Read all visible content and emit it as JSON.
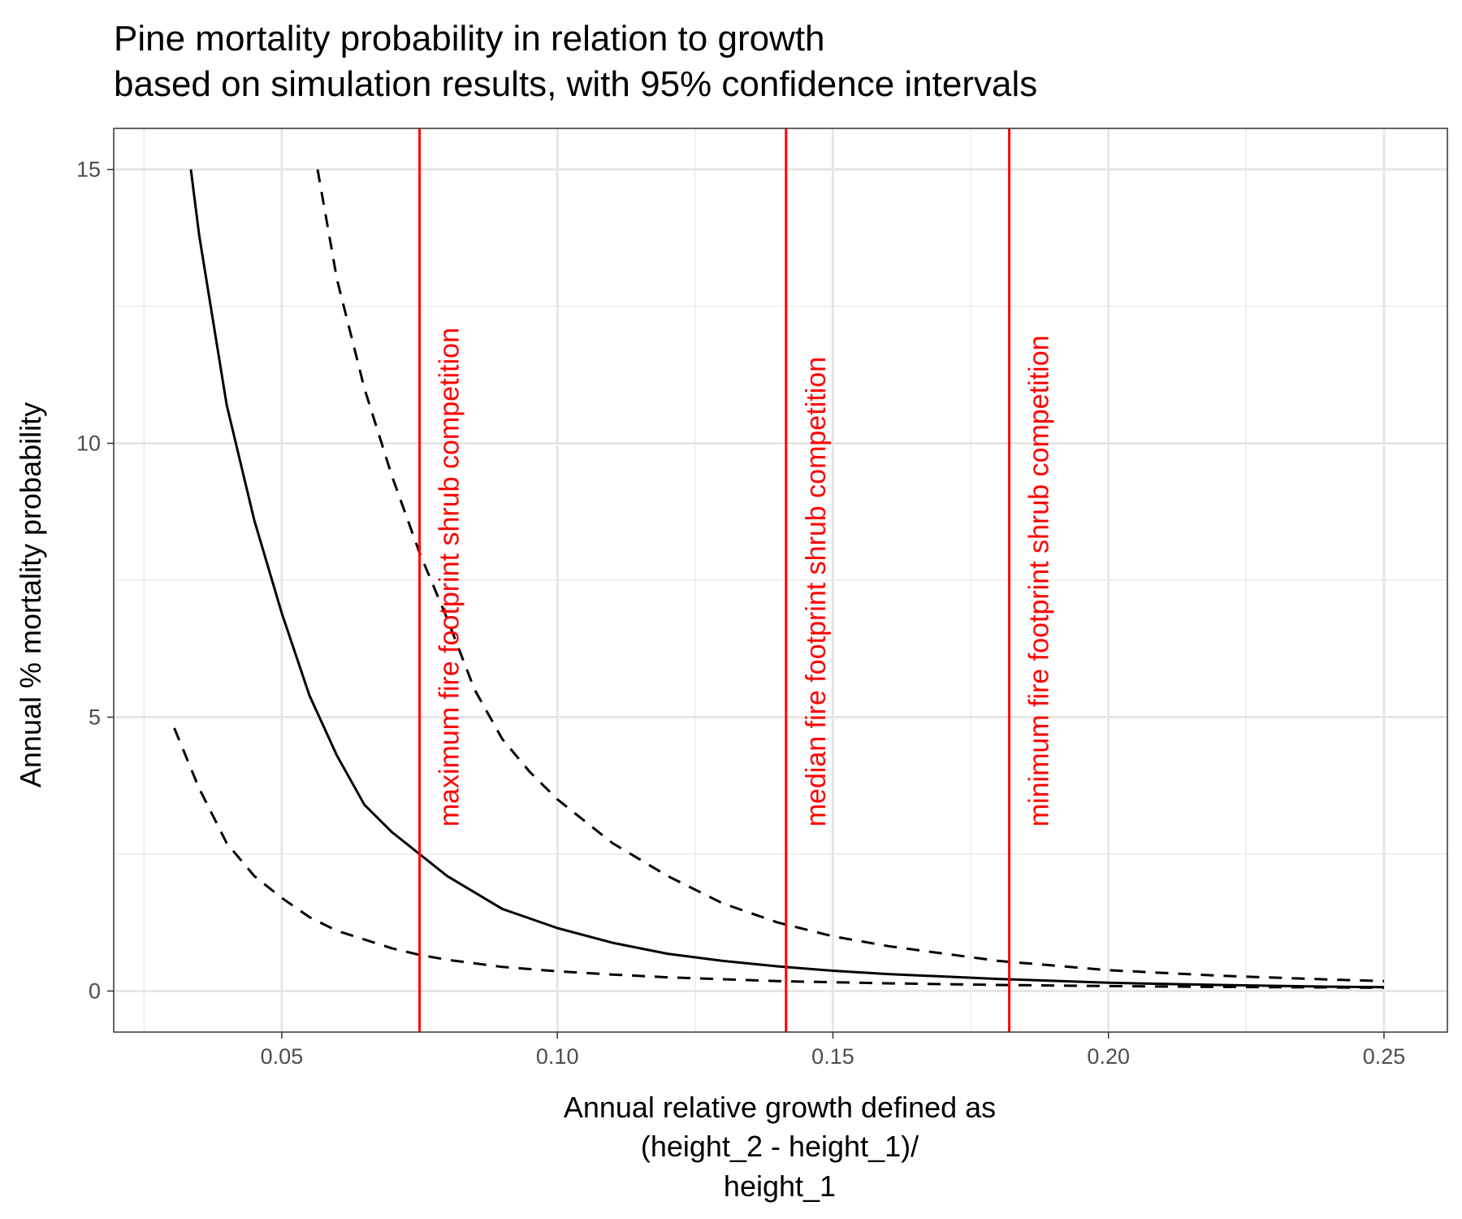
{
  "chart_data": {
    "type": "line",
    "title_lines": [
      "Pine mortality probability in relation to growth",
      "based on simulation results, with 95% confidence intervals"
    ],
    "xlabel_lines": [
      "Annual relative growth defined as",
      "(height_2 - height_1)/",
      "height_1"
    ],
    "ylabel": "Annual % mortality probability",
    "xlim": [
      0.0195,
      0.2615
    ],
    "ylim": [
      -0.75,
      15.75
    ],
    "x_ticks": [
      0.05,
      0.1,
      0.15,
      0.2,
      0.25
    ],
    "x_tick_labels": [
      "0.05",
      "0.10",
      "0.15",
      "0.20",
      "0.25"
    ],
    "y_ticks": [
      0,
      5,
      10,
      15
    ],
    "y_tick_labels": [
      "0",
      "5",
      "10",
      "15"
    ],
    "grid": true,
    "series": [
      {
        "style": "solid",
        "color": "#000000",
        "x": [
          0.0335,
          0.035,
          0.04,
          0.045,
          0.05,
          0.055,
          0.06,
          0.065,
          0.07,
          0.075,
          0.08,
          0.09,
          0.1,
          0.11,
          0.12,
          0.13,
          0.14,
          0.15,
          0.16,
          0.18,
          0.2,
          0.22,
          0.24,
          0.25
        ],
        "y": [
          15.0,
          13.8,
          10.7,
          8.6,
          6.9,
          5.4,
          4.3,
          3.4,
          2.9,
          2.5,
          2.1,
          1.5,
          1.15,
          0.88,
          0.68,
          0.55,
          0.45,
          0.37,
          0.31,
          0.22,
          0.15,
          0.11,
          0.08,
          0.07
        ]
      },
      {
        "style": "dashed",
        "color": "#000000",
        "x": [
          0.0565,
          0.06,
          0.065,
          0.07,
          0.075,
          0.08,
          0.085,
          0.09,
          0.095,
          0.1,
          0.11,
          0.12,
          0.13,
          0.14,
          0.15,
          0.16,
          0.18,
          0.2,
          0.22,
          0.24,
          0.25
        ],
        "y": [
          15.0,
          13.0,
          11.0,
          9.4,
          8.0,
          6.8,
          5.5,
          4.6,
          4.0,
          3.5,
          2.7,
          2.1,
          1.6,
          1.25,
          1.0,
          0.82,
          0.55,
          0.38,
          0.28,
          0.21,
          0.18
        ]
      },
      {
        "style": "dashed",
        "color": "#000000",
        "x": [
          0.0305,
          0.035,
          0.04,
          0.045,
          0.05,
          0.055,
          0.06,
          0.07,
          0.075,
          0.08,
          0.09,
          0.1,
          0.11,
          0.12,
          0.14,
          0.16,
          0.18,
          0.2,
          0.22,
          0.25
        ],
        "y": [
          4.8,
          3.7,
          2.7,
          2.1,
          1.7,
          1.35,
          1.1,
          0.78,
          0.66,
          0.57,
          0.44,
          0.36,
          0.3,
          0.25,
          0.18,
          0.14,
          0.11,
          0.09,
          0.075,
          0.06
        ]
      }
    ],
    "vlines": [
      {
        "x": 0.075,
        "label": "maximum fire footprint shrub competition",
        "color": "#ff0000"
      },
      {
        "x": 0.1415,
        "label": "median fire footprint shrub competition",
        "color": "#ff0000"
      },
      {
        "x": 0.182,
        "label": "minimum fire footprint shrub competition",
        "color": "#ff0000"
      }
    ]
  }
}
